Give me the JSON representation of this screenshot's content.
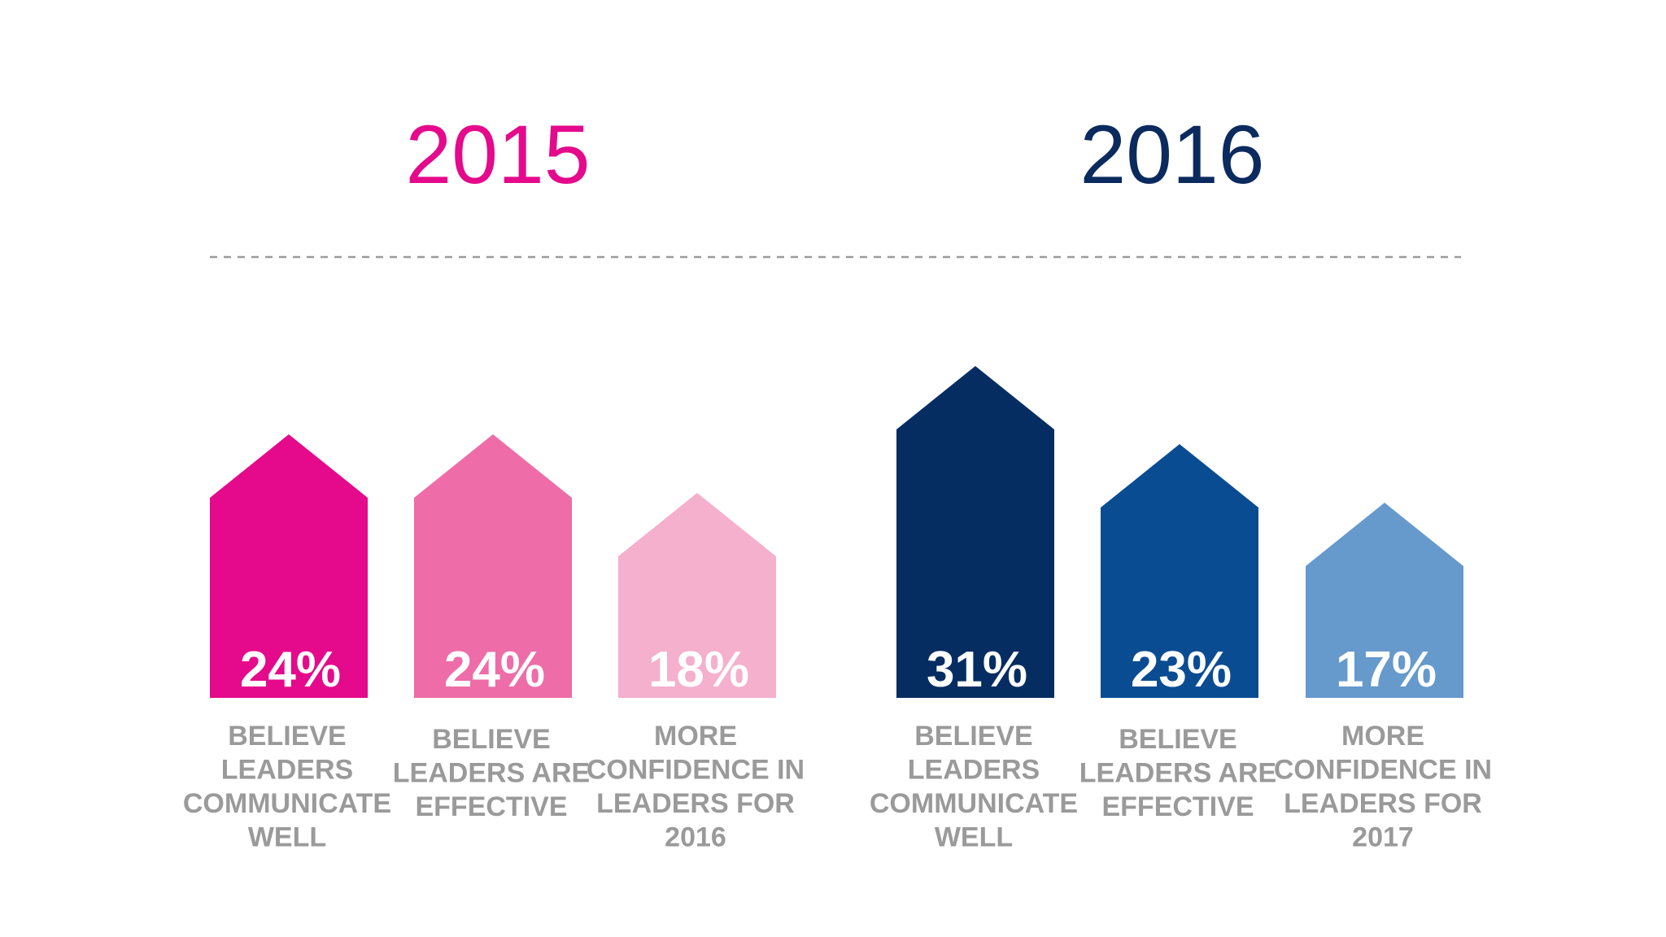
{
  "chart_data": {
    "type": "bar",
    "series": [
      {
        "name": "2015",
        "color": "#e5098b",
        "bars": [
          {
            "label_lines": [
              "BELIEVE",
              "LEADERS",
              "COMMUNICATE",
              "WELL"
            ],
            "value": 24,
            "display": "24%",
            "color": "#e5098b"
          },
          {
            "label_lines": [
              "BELIEVE",
              "LEADERS ARE",
              "EFFECTIVE"
            ],
            "value": 24,
            "display": "24%",
            "color": "#ee6ca8"
          },
          {
            "label_lines": [
              "MORE",
              "CONFIDENCE IN",
              "LEADERS FOR",
              "2016"
            ],
            "value": 18,
            "display": "18%",
            "color": "#f4b0cd"
          }
        ]
      },
      {
        "name": "2016",
        "color": "#0b2a5e",
        "bars": [
          {
            "label_lines": [
              "BELIEVE",
              "LEADERS",
              "COMMUNICATE",
              "WELL"
            ],
            "value": 31,
            "display": "31%",
            "color": "#062d62"
          },
          {
            "label_lines": [
              "BELIEVE",
              "LEADERS ARE",
              "EFFECTIVE"
            ],
            "value": 23,
            "display": "23%",
            "color": "#0a4c92"
          },
          {
            "label_lines": [
              "MORE",
              "CONFIDENCE IN",
              "LEADERS FOR",
              "2017"
            ],
            "value": 17,
            "display": "17%",
            "color": "#6699cc"
          }
        ]
      }
    ],
    "value_unit": "%"
  }
}
